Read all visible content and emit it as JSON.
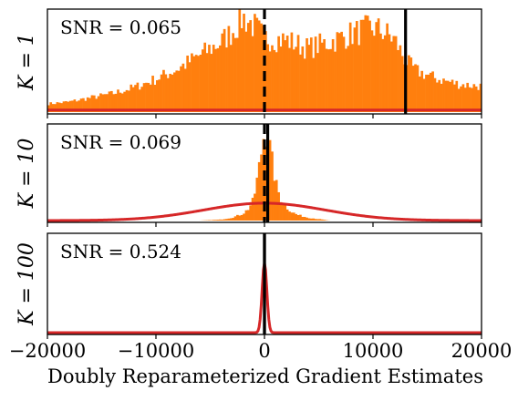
{
  "chart_data": {
    "type": "histogram-panels",
    "xlabel": "Doubly Reparameterized Gradient Estimates",
    "xlim": [
      -20000,
      20000
    ],
    "xticks": [
      -20000,
      -10000,
      0,
      10000,
      20000
    ],
    "xtick_labels": [
      "−20000",
      "−10000",
      "0",
      "10000",
      "20000"
    ],
    "colors": {
      "histogram": "#ff7f0e",
      "gaussian": "#d62728",
      "marker": "#000000"
    },
    "panels": [
      {
        "ylabel": "K = 1",
        "snr_label": "SNR = 0.065",
        "true_gradient_x": 0,
        "mean_estimate_x": 13000,
        "gaussian_peak_frac": 0.02,
        "hist_profile": [
          [
            -20000,
            0.08
          ],
          [
            -18000,
            0.1
          ],
          [
            -16000,
            0.14
          ],
          [
            -14000,
            0.18
          ],
          [
            -12000,
            0.24
          ],
          [
            -10000,
            0.32
          ],
          [
            -8000,
            0.42
          ],
          [
            -6000,
            0.55
          ],
          [
            -4000,
            0.68
          ],
          [
            -3000,
            0.78
          ],
          [
            -2000,
            0.92
          ],
          [
            -1000,
            0.84
          ],
          [
            0,
            0.72
          ],
          [
            2000,
            0.7
          ],
          [
            4000,
            0.62
          ],
          [
            6000,
            0.68
          ],
          [
            8000,
            0.76
          ],
          [
            10000,
            0.82
          ],
          [
            11000,
            0.78
          ],
          [
            12000,
            0.7
          ],
          [
            13000,
            0.5
          ],
          [
            14000,
            0.4
          ],
          [
            16000,
            0.32
          ],
          [
            18000,
            0.27
          ],
          [
            20000,
            0.25
          ]
        ]
      },
      {
        "ylabel": "K = 10",
        "snr_label": "SNR = 0.069",
        "true_gradient_x": 0,
        "mean_estimate_x": 300,
        "gaussian_mean": 0,
        "gaussian_sd": 5600,
        "gaussian_peak_frac": 0.18,
        "hist_profile": [
          [
            -20000,
            0.0
          ],
          [
            -6000,
            0.0
          ],
          [
            -4000,
            0.01
          ],
          [
            -3000,
            0.03
          ],
          [
            -2000,
            0.07
          ],
          [
            -1500,
            0.12
          ],
          [
            -1000,
            0.22
          ],
          [
            -500,
            0.55
          ],
          [
            0,
            0.95
          ],
          [
            500,
            0.75
          ],
          [
            1000,
            0.4
          ],
          [
            1500,
            0.22
          ],
          [
            2000,
            0.14
          ],
          [
            2500,
            0.09
          ],
          [
            3000,
            0.06
          ],
          [
            4000,
            0.03
          ],
          [
            5000,
            0.015
          ],
          [
            6000,
            0.0
          ],
          [
            20000,
            0.0
          ]
        ]
      },
      {
        "ylabel": "K = 100",
        "snr_label": "SNR = 0.524",
        "true_gradient_x": 0,
        "mean_estimate_x": 0,
        "gaussian_mean": 0,
        "gaussian_sd": 220,
        "gaussian_peak_frac": 0.7
      }
    ]
  }
}
